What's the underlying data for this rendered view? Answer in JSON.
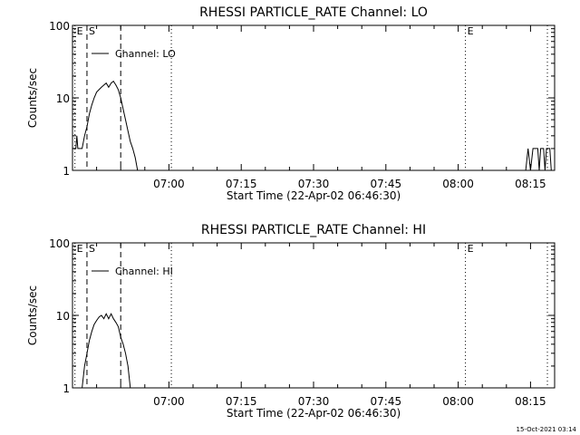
{
  "footer": {
    "timestamp": "15-Oct-2021 03:14"
  },
  "chart_data": [
    {
      "type": "line",
      "title": "RHESSI PARTICLE_RATE Channel: LO",
      "xlabel": "Start Time (22-Apr-02 06:46:30)",
      "ylabel": "Counts/sec",
      "yscale": "log",
      "ylim": [
        1,
        100
      ],
      "xlim_min": [
        -6.5,
        93.5
      ],
      "xticks": [
        {
          "t": 13.5,
          "label": "07:00"
        },
        {
          "t": 28.5,
          "label": "07:15"
        },
        {
          "t": 43.5,
          "label": "07:30"
        },
        {
          "t": 58.5,
          "label": "07:45"
        },
        {
          "t": 73.5,
          "label": "08:00"
        },
        {
          "t": 88.5,
          "label": "08:15"
        }
      ],
      "yticks": [
        {
          "v": 1,
          "label": "1"
        },
        {
          "v": 10,
          "label": "10"
        },
        {
          "v": 100,
          "label": "100"
        }
      ],
      "legend": "Channel: LO",
      "markers": [
        {
          "t": -6.0,
          "style": "dotted",
          "label": "E"
        },
        {
          "t": -3.5,
          "style": "dashed",
          "label": "S"
        },
        {
          "t": 3.5,
          "style": "dashed",
          "label": ""
        },
        {
          "t": 14.0,
          "style": "dotted",
          "label": ""
        },
        {
          "t": 75.0,
          "style": "dotted",
          "label": "E"
        },
        {
          "t": 92.0,
          "style": "dotted",
          "label": ""
        }
      ],
      "series": [
        {
          "name": "Channel: LO",
          "segments": [
            [
              [
                -6.4,
                2
              ],
              [
                -5.8,
                2
              ],
              [
                -5.6,
                3
              ],
              [
                -5.4,
                2
              ],
              [
                -4.5,
                2
              ],
              [
                -4,
                3
              ],
              [
                -3.5,
                4
              ],
              [
                -3,
                6
              ],
              [
                -2.5,
                8
              ],
              [
                -2,
                10
              ],
              [
                -1.5,
                12
              ],
              [
                -1,
                13
              ],
              [
                -0.5,
                14
              ],
              [
                0,
                15
              ],
              [
                0.5,
                16
              ],
              [
                1,
                14
              ],
              [
                1.5,
                16
              ],
              [
                2,
                17
              ],
              [
                2.5,
                15
              ],
              [
                3,
                13
              ],
              [
                3.5,
                10
              ],
              [
                4,
                7
              ],
              [
                4.5,
                5
              ],
              [
                5,
                3.5
              ],
              [
                5.5,
                2.5
              ],
              [
                6,
                2
              ],
              [
                6.5,
                1.5
              ],
              [
                7,
                1
              ]
            ],
            [
              [
                87.5,
                1
              ],
              [
                88,
                2
              ],
              [
                88.5,
                1
              ],
              [
                89,
                2
              ],
              [
                90,
                2
              ],
              [
                90.3,
                1
              ],
              [
                90.6,
                2
              ],
              [
                91.2,
                2
              ],
              [
                91.5,
                1
              ],
              [
                91.8,
                2
              ],
              [
                92.5,
                2
              ],
              [
                92.8,
                1
              ]
            ]
          ]
        }
      ]
    },
    {
      "type": "line",
      "title": "RHESSI PARTICLE_RATE Channel: HI",
      "xlabel": "Start Time (22-Apr-02 06:46:30)",
      "ylabel": "Counts/sec",
      "yscale": "log",
      "ylim": [
        1,
        100
      ],
      "xlim_min": [
        -6.5,
        93.5
      ],
      "xticks": [
        {
          "t": 13.5,
          "label": "07:00"
        },
        {
          "t": 28.5,
          "label": "07:15"
        },
        {
          "t": 43.5,
          "label": "07:30"
        },
        {
          "t": 58.5,
          "label": "07:45"
        },
        {
          "t": 73.5,
          "label": "08:00"
        },
        {
          "t": 88.5,
          "label": "08:15"
        }
      ],
      "yticks": [
        {
          "v": 1,
          "label": "1"
        },
        {
          "v": 10,
          "label": "10"
        },
        {
          "v": 100,
          "label": "100"
        }
      ],
      "legend": "Channel: HI",
      "markers": [
        {
          "t": -6.0,
          "style": "dotted",
          "label": "E"
        },
        {
          "t": -3.5,
          "style": "dashed",
          "label": "S"
        },
        {
          "t": 3.5,
          "style": "dashed",
          "label": ""
        },
        {
          "t": 14.0,
          "style": "dotted",
          "label": ""
        },
        {
          "t": 75.0,
          "style": "dotted",
          "label": "E"
        },
        {
          "t": 92.0,
          "style": "dotted",
          "label": ""
        }
      ],
      "series": [
        {
          "name": "Channel: HI",
          "segments": [
            [
              [
                -4.5,
                1
              ],
              [
                -4,
                2
              ],
              [
                -3.5,
                3
              ],
              [
                -3,
                4.5
              ],
              [
                -2.5,
                6
              ],
              [
                -2,
                7.5
              ],
              [
                -1.5,
                8.5
              ],
              [
                -1,
                9.5
              ],
              [
                -0.5,
                10
              ],
              [
                0,
                9
              ],
              [
                0.5,
                10.5
              ],
              [
                1,
                9
              ],
              [
                1.5,
                10.5
              ],
              [
                2,
                9
              ],
              [
                2.5,
                8
              ],
              [
                3,
                7
              ],
              [
                3.5,
                5
              ],
              [
                4,
                4
              ],
              [
                4.5,
                3
              ],
              [
                5,
                2
              ],
              [
                5.5,
                1
              ]
            ]
          ]
        }
      ]
    }
  ]
}
